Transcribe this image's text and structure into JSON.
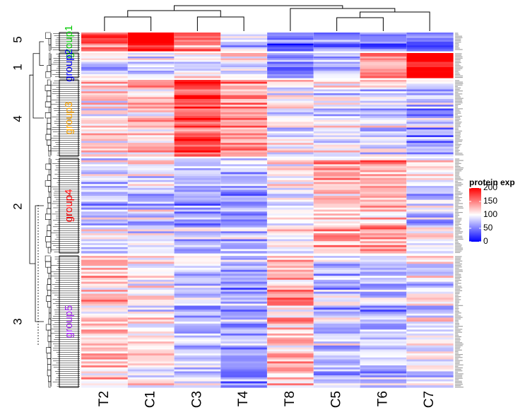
{
  "chart_data": {
    "type": "heatmap",
    "columns": [
      "T2",
      "C1",
      "C3",
      "T4",
      "T8",
      "C5",
      "T6",
      "C7"
    ],
    "row_clusters": [
      {
        "id": "5",
        "group": "group1",
        "color": "#00c800",
        "rows": 10,
        "profile": [
          155,
          205,
          135,
          80,
          35,
          45,
          40,
          25
        ]
      },
      {
        "id": "1",
        "group": "group2",
        "color": "#0000ff",
        "rows": 14,
        "profile": [
          85,
          80,
          90,
          95,
          55,
          80,
          150,
          200
        ]
      },
      {
        "id": "4",
        "group": "group3",
        "color": "#ffa500",
        "rows": 40,
        "profile": [
          115,
          120,
          170,
          135,
          95,
          90,
          85,
          70
        ]
      },
      {
        "id": "2",
        "group": "group4",
        "color": "#ff0000",
        "rows": 48,
        "profile": [
          85,
          90,
          70,
          70,
          100,
          130,
          130,
          90
        ]
      },
      {
        "id": "3",
        "group": "group5",
        "color": "#a020f0",
        "rows": 66,
        "profile": [
          125,
          110,
          80,
          65,
          130,
          80,
          75,
          95
        ]
      }
    ],
    "legend": {
      "title": "protein exp",
      "ticks": [
        200,
        150,
        100,
        50,
        0
      ],
      "range": [
        0,
        200
      ],
      "colors": [
        "#0000ff",
        "#ffffff",
        "#ff0000"
      ]
    }
  }
}
